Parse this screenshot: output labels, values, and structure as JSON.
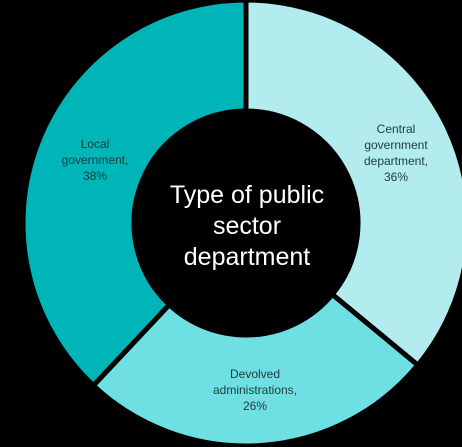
{
  "chart_data": {
    "type": "pie",
    "center_label": [
      "Type of public",
      "sector",
      "department"
    ],
    "slices": [
      {
        "label": [
          "Central",
          "government",
          "department,",
          "36%"
        ],
        "value": 36,
        "color": "#b3ecee"
      },
      {
        "label": [
          "Devolved",
          "administrations,",
          "26%"
        ],
        "value": 26,
        "color": "#6ee0e3"
      },
      {
        "label": [
          "Local",
          "government,",
          "38%"
        ],
        "value": 38,
        "color": "#00b5b8"
      }
    ],
    "legend": "none",
    "background": "#000000"
  }
}
